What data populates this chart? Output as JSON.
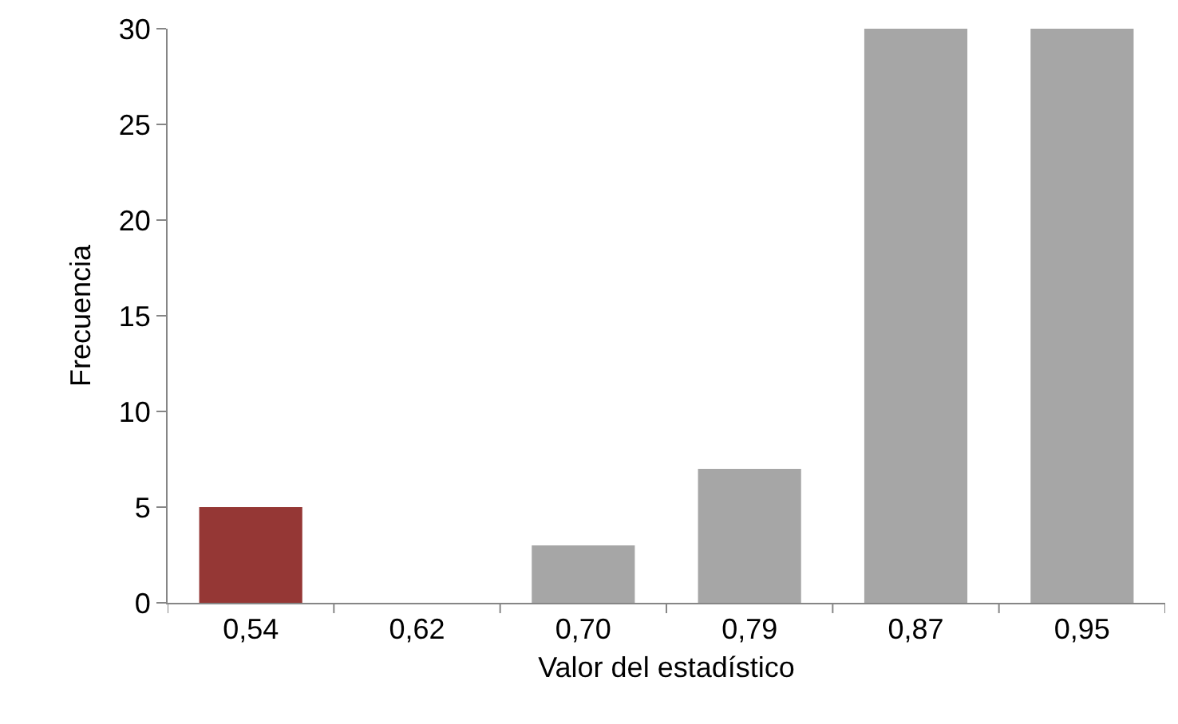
{
  "chart_data": {
    "type": "bar",
    "xlabel": "Valor del estadístico",
    "ylabel": "Frecuencia",
    "categories": [
      "0,54",
      "0,62",
      "0,70",
      "0,79",
      "0,87",
      "0,95"
    ],
    "values": [
      5,
      0,
      3,
      7,
      30,
      30
    ],
    "colors": [
      "#953735",
      "#a6a6a6",
      "#a6a6a6",
      "#a6a6a6",
      "#a6a6a6",
      "#a6a6a6"
    ],
    "ylim": [
      0,
      30
    ],
    "yticks": [
      0,
      5,
      10,
      15,
      20,
      25,
      30
    ],
    "grid": false,
    "legend": false
  }
}
